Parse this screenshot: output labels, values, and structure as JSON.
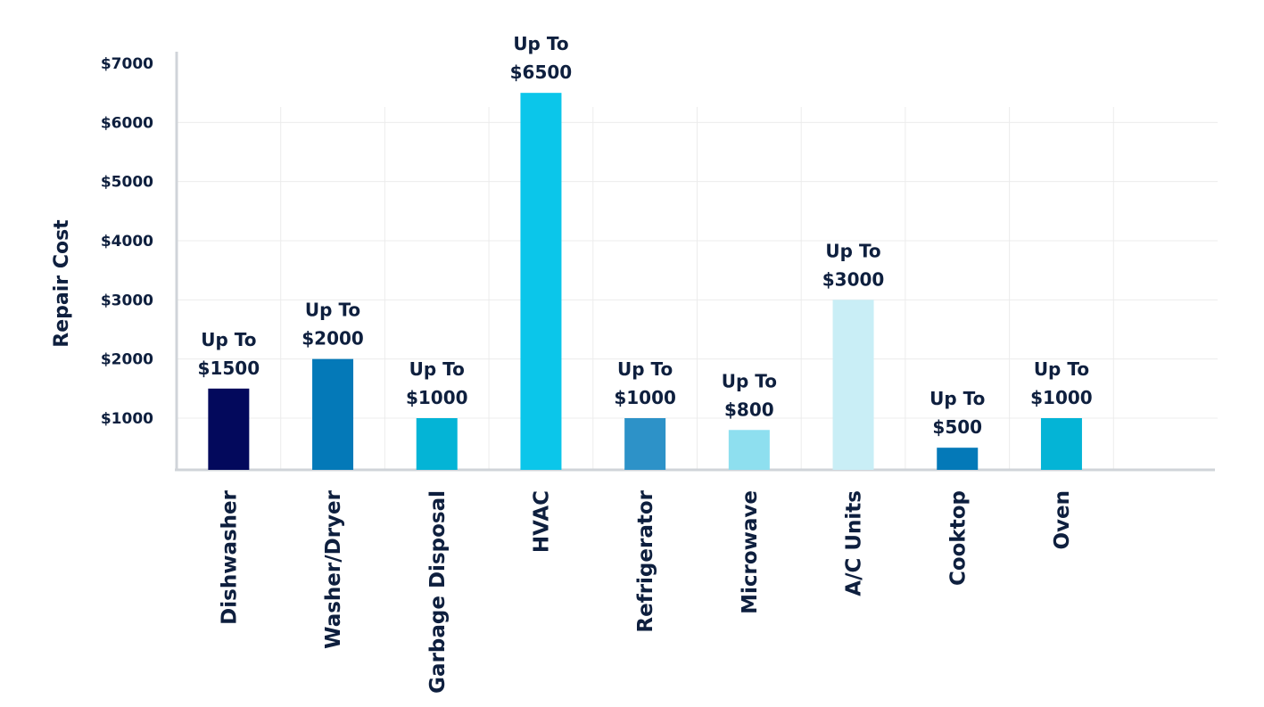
{
  "chart_data": {
    "type": "bar",
    "ylabel": "Repair Cost",
    "xlabel": "",
    "ylim": [
      0,
      7000
    ],
    "y_ticks": [
      "$1000",
      "$2000",
      "$3000",
      "$4000",
      "$5000",
      "$6000",
      "$7000"
    ],
    "y_tick_values": [
      1000,
      2000,
      3000,
      4000,
      5000,
      6000,
      7000
    ],
    "grid": true,
    "categories": [
      "Dishwasher",
      "Washer/Dryer",
      "Garbage Disposal",
      "HVAC",
      "Refrigerator",
      "Microwave",
      "A/C Units",
      "Cooktop",
      "Oven"
    ],
    "values": [
      1500,
      2000,
      1000,
      6500,
      1000,
      800,
      3000,
      500,
      1000
    ],
    "label_prefix": "Up To",
    "data_labels": [
      "$1500",
      "$2000",
      "$1000",
      "$6500",
      "$1000",
      "$800",
      "$3000",
      "$500",
      "$1000"
    ],
    "colors": [
      "#03095c",
      "#0479b8",
      "#04b4d6",
      "#0bc6ea",
      "#2d92c8",
      "#8edfef",
      "#c9eef6",
      "#0479b8",
      "#04b4d6"
    ]
  }
}
